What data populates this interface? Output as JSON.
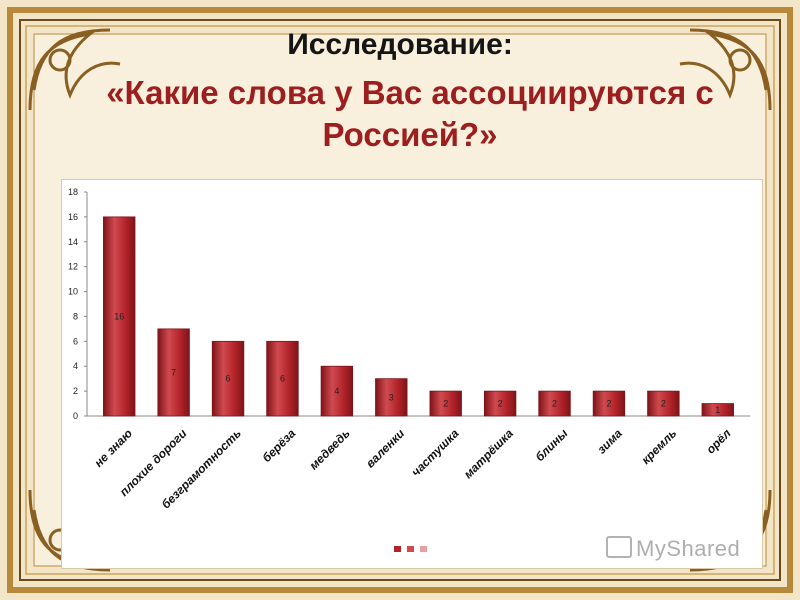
{
  "header": {
    "title_line1": "Исследование:",
    "title_line2": "«Какие слова у Вас ассоциируются с Россией?»"
  },
  "watermark": {
    "text": "MyShared"
  },
  "colors": {
    "bar": "#b3242a",
    "bar_dark": "#7e1419",
    "bar_light": "#d04a4f",
    "frame_gold": "#b8893a",
    "frame_dark": "#6b4a1c",
    "title_red": "#9c1e1e"
  },
  "chart_data": {
    "type": "bar",
    "categories": [
      "не знаю",
      "плохие дороги",
      "безграмотность",
      "берёза",
      "медведь",
      "валенки",
      "частушка",
      "матрёшка",
      "блины",
      "зима",
      "кремль",
      "орёл"
    ],
    "values": [
      16,
      7,
      6,
      6,
      4,
      3,
      2,
      2,
      2,
      2,
      2,
      1
    ],
    "data_labels": [
      "16",
      "7",
      "6",
      "6",
      "4",
      "3",
      "2",
      "2",
      "2",
      "2",
      "2",
      "1"
    ],
    "yticks": [
      "0",
      "2",
      "4",
      "6",
      "8",
      "10",
      "12",
      "14",
      "16",
      "18"
    ],
    "ylim": [
      0,
      18
    ],
    "grid": false,
    "legend": "bottom-center"
  }
}
